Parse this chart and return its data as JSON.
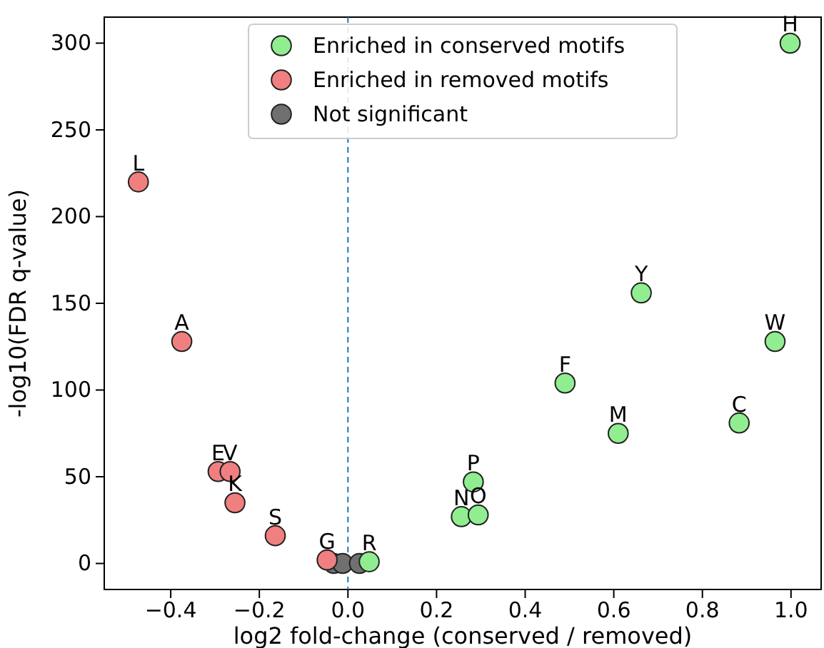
{
  "chart_data": {
    "type": "scatter",
    "xlabel": "log2 fold-change (conserved / removed)",
    "ylabel": "-log10(FDR q-value)",
    "xlim": [
      -0.55,
      1.068
    ],
    "ylim": [
      -15,
      315
    ],
    "xticks": [
      {
        "value": -0.4,
        "label": "−0.4"
      },
      {
        "value": -0.2,
        "label": "−0.2"
      },
      {
        "value": 0,
        "label": "0.0"
      },
      {
        "value": 0.2,
        "label": "0.2"
      },
      {
        "value": 0.4,
        "label": "0.4"
      },
      {
        "value": 0.6,
        "label": "0.6"
      },
      {
        "value": 0.8,
        "label": "0.8"
      },
      {
        "value": 1,
        "label": "1.0"
      }
    ],
    "yticks": [
      0,
      50,
      100,
      150,
      200,
      250,
      300
    ],
    "grid": false,
    "legend": "top",
    "marker": "circle",
    "series": [
      {
        "name": "Enriched in conserved motifs",
        "color": "#90ee90",
        "x": [
          0.998,
          0.662,
          0.964,
          0.49,
          0.61,
          0.883,
          0.283,
          0.256,
          0.294,
          0.048
        ],
        "values": [
          300,
          156,
          128,
          104,
          75,
          81,
          47,
          27,
          28,
          1
        ]
      },
      {
        "name": "Enriched in removed motifs",
        "color": "#f08080",
        "x": [
          -0.473,
          -0.375,
          -0.293,
          -0.266,
          -0.255,
          -0.164,
          -0.047
        ],
        "values": [
          220,
          128,
          53,
          53,
          35,
          16,
          2
        ]
      },
      {
        "name": "Not significant",
        "color": "#707070",
        "x": [
          -0.032,
          -0.012,
          0.026
        ],
        "values": [
          0,
          0,
          0
        ]
      }
    ],
    "ref_lines": [
      {
        "axis": "x",
        "value": 0,
        "color": "#1f77b4",
        "line_style": "dashed"
      }
    ],
    "annotations": [
      {
        "text": "H",
        "x": 0.998,
        "y": 300
      },
      {
        "text": "Y",
        "x": 0.662,
        "y": 156
      },
      {
        "text": "W",
        "x": 0.964,
        "y": 128
      },
      {
        "text": "F",
        "x": 0.49,
        "y": 104
      },
      {
        "text": "M",
        "x": 0.61,
        "y": 75
      },
      {
        "text": "C",
        "x": 0.883,
        "y": 81
      },
      {
        "text": "P",
        "x": 0.283,
        "y": 47
      },
      {
        "text": "N",
        "x": 0.256,
        "y": 27
      },
      {
        "text": "O",
        "x": 0.294,
        "y": 28
      },
      {
        "text": "R",
        "x": 0.048,
        "y": 1
      },
      {
        "text": "L",
        "x": -0.473,
        "y": 220
      },
      {
        "text": "A",
        "x": -0.375,
        "y": 128
      },
      {
        "text": "E",
        "x": -0.293,
        "y": 53
      },
      {
        "text": "V",
        "x": -0.266,
        "y": 53
      },
      {
        "text": "K",
        "x": -0.255,
        "y": 35
      },
      {
        "text": "S",
        "x": -0.164,
        "y": 16
      },
      {
        "text": "G",
        "x": -0.047,
        "y": 2
      }
    ]
  }
}
